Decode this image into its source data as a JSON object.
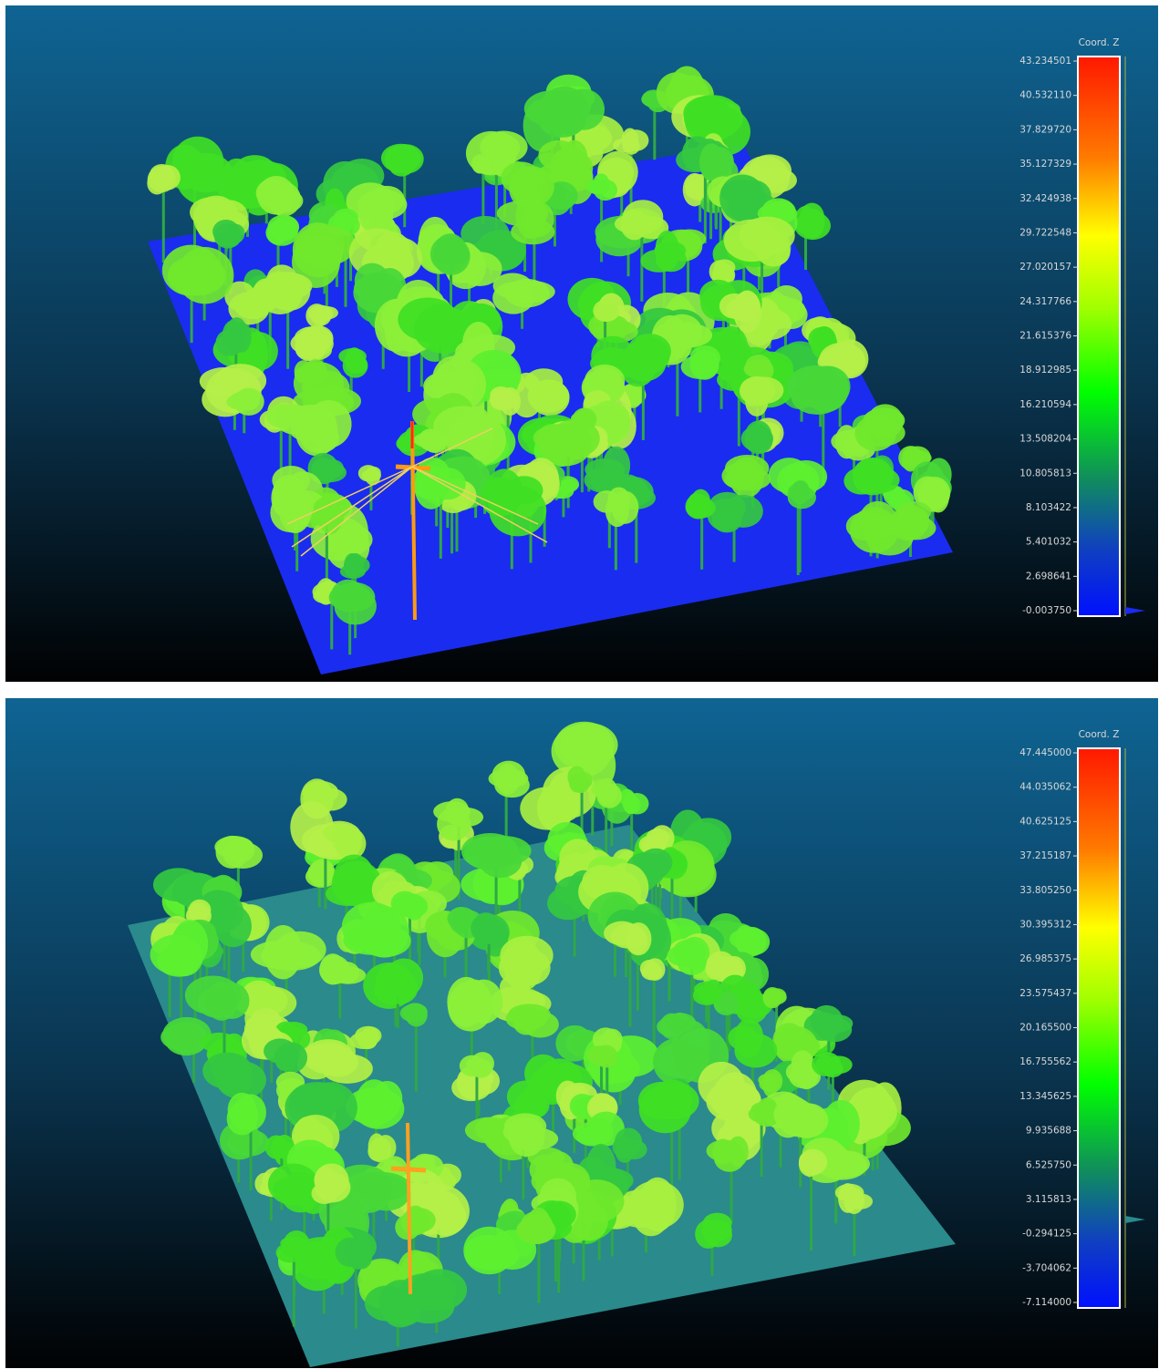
{
  "panels": [
    {
      "scale": {
        "title": "Coord. Z",
        "labels": [
          "43.234501",
          "40.532110",
          "37.829720",
          "35.127329",
          "32.424938",
          "29.722548",
          "27.020157",
          "24.317766",
          "21.615376",
          "18.912985",
          "16.210594",
          "13.508204",
          "10.805813",
          "8.103422",
          "5.401032",
          "2.698641",
          "-0.003750"
        ]
      }
    },
    {
      "scale": {
        "title": "Coord. Z",
        "labels": [
          "47.445000",
          "44.035062",
          "40.625125",
          "37.215187",
          "33.805250",
          "30.395312",
          "26.985375",
          "23.575437",
          "20.165500",
          "16.755562",
          "13.345625",
          "9.935688",
          "6.525750",
          "3.115813",
          "-0.294125",
          "-3.704062",
          "-7.114000"
        ]
      }
    }
  ]
}
